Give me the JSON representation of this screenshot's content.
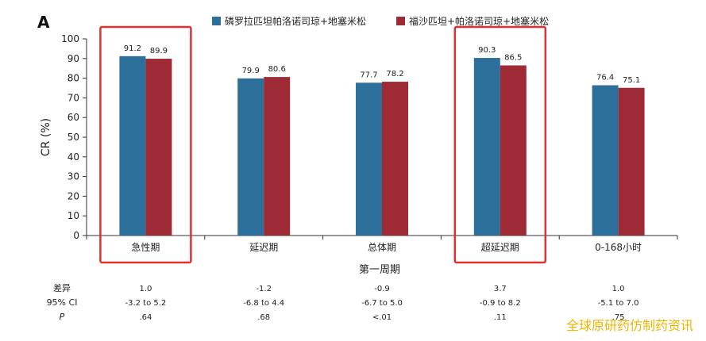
{
  "panel_letter": "A",
  "colors": {
    "series1": "#2b6f9a",
    "series2": "#9e2a35",
    "highlight": "#e03030",
    "watermark": "#f0b400"
  },
  "chart_data": {
    "type": "bar",
    "categories": [
      "急性期",
      "延迟期",
      "总体期",
      "超延迟期",
      "0-168小时"
    ],
    "series": [
      {
        "name": "磷罗拉匹坦帕洛诺司琼+地塞米松",
        "values": [
          91.2,
          79.9,
          77.7,
          90.3,
          76.4
        ],
        "labels": [
          "91.2",
          "79.9",
          "77.7",
          "90.3",
          "76.4"
        ]
      },
      {
        "name": "福沙匹坦+帕洛诺司琼+地塞米松",
        "values": [
          89.9,
          80.6,
          78.2,
          86.5,
          75.1
        ],
        "labels": [
          "89.9",
          "80.6",
          "78.2",
          "86.5",
          "75.1"
        ]
      }
    ],
    "ylabel": "CR (%)",
    "xlabel": "第一周期",
    "ylim": [
      0,
      100
    ],
    "yticks": [
      "0",
      "10",
      "20",
      "30",
      "40",
      "50",
      "60",
      "70",
      "80",
      "90",
      "100"
    ],
    "legend_position": "top",
    "highlighted_categories": [
      "急性期",
      "超延迟期"
    ],
    "stats_rows": [
      {
        "label": "差异",
        "values": [
          "1.0",
          "-1.2",
          "-0.9",
          "3.7",
          "1.0"
        ]
      },
      {
        "label": "95% CI",
        "values": [
          "-3.2 to 5.2",
          "-6.8 to 4.4",
          "-6.7 to 5.0",
          "-0.9 to 8.2",
          "-5.1 to 7.0"
        ]
      },
      {
        "label": "P",
        "values": [
          ".64",
          ".68",
          "<.01",
          ".11",
          ".75"
        ]
      }
    ]
  },
  "watermark": "全球原研药仿制药资讯"
}
